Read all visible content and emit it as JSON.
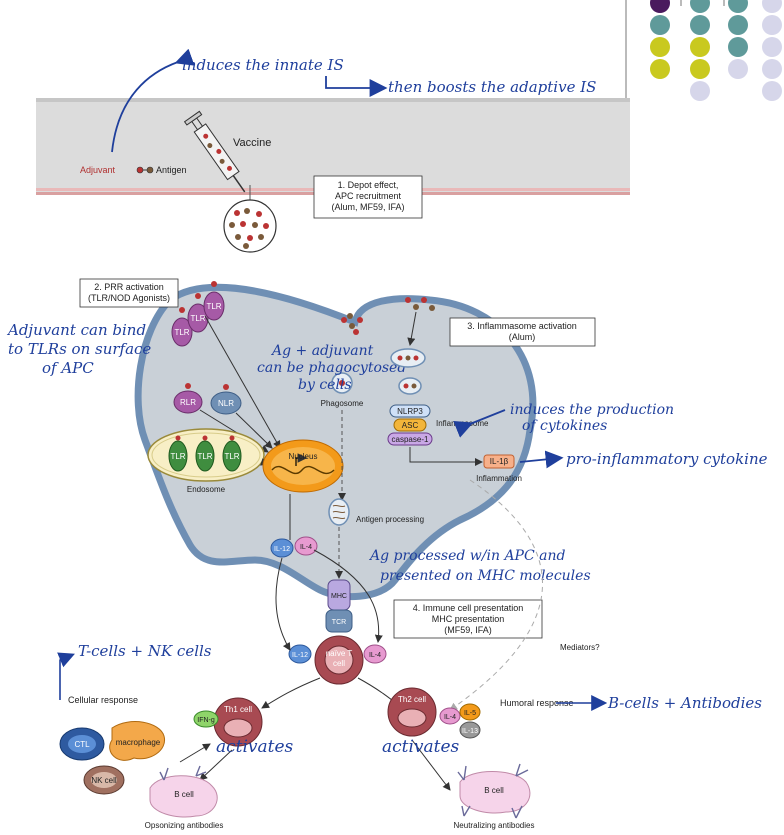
{
  "colors": {
    "cell": "#c9d0d7",
    "cell_border": "#6f8fb4",
    "ink": "#1f3f9c",
    "tlr": "#a65aa6",
    "tlr_light": "#e6bfe6",
    "endosome_tlr": "#3f8d3f",
    "nucleus": "#f39a1a",
    "th_cell": "#a84a52",
    "b_cell": "#f6d4ea",
    "dot_purple": "#4a1a5e",
    "dot_teal": "#5f9a9a",
    "dot_yellow": "#c9c91f",
    "dot_lavender": "#d6d6ea"
  },
  "header": {
    "vaccine": "Vaccine",
    "adjuvant": "Adjuvant",
    "antigen": "Antigen",
    "depot_box": [
      "1. Depot effect,",
      "APC recruitment",
      "(Alum, MF59, IFA)"
    ]
  },
  "boxes": {
    "prr": [
      "2. PRR activation",
      "(TLR/NOD Agonists)"
    ],
    "inflammasome": [
      "3. Inflammasome activation",
      "(Alum)"
    ],
    "presentation": [
      "4. Immune cell presentation",
      "MHC presentation",
      "(MF59, IFA)"
    ]
  },
  "cell_labels": {
    "tlr": "TLR",
    "rlr": "RLR",
    "nlr": "NLR",
    "endosome": "Endosome",
    "nucleus": "Nucleus",
    "phagosome": "Phagosome",
    "nlrp3": "NLRP3",
    "asc": "ASC",
    "caspase": "caspase-1",
    "inflammasome": "Inflammasome",
    "il1b": "IL-1β",
    "inflammation": "Inflammation",
    "antigen_processing": "Antigen processing",
    "il12": "IL-12",
    "il4": "IL-4",
    "mhc": "MHC",
    "tcr": "TCR",
    "naive_t": [
      "naïve T",
      "cell"
    ],
    "mediators": "Mediators?"
  },
  "lower": {
    "cellular_response": "Cellular response",
    "humoral_response": "Humoral response",
    "th1": "Th1 cell",
    "th2": "Th2 cell",
    "ifng": "IFN-g",
    "il5": "IL-5",
    "il13": "IL-13",
    "ctl": "CTL",
    "macrophage": "macrophage",
    "nk": "NK cell",
    "bcell": "B cell",
    "opsonizing": "Opsonizing antibodies",
    "neutralizing": "Neutralizing antibodies"
  },
  "notes": {
    "innate": "induces the innate IS",
    "adaptive": "then boosts the adaptive IS",
    "tlr_bind": [
      "Adjuvant can bind",
      "to TLRs on surface",
      "of APC"
    ],
    "phago": [
      "Ag + adjuvant",
      "can be phagocytosed",
      "by cells"
    ],
    "cytokines": [
      "induces the production",
      "of cytokines"
    ],
    "proinflam": "pro-inflammatory cytokine",
    "processed": [
      "Ag processed w/in APC and",
      "presented on MHC molecules"
    ],
    "tnk": "T-cells + NK cells",
    "bcells": "B-cells + Antibodies",
    "activates_left": "activates",
    "activates_right": "activates"
  }
}
